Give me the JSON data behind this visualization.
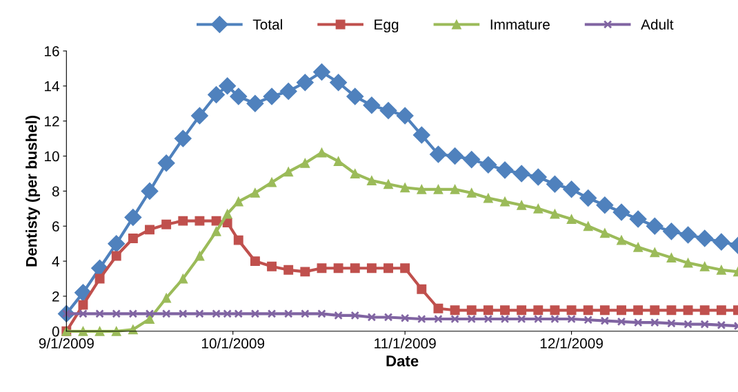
{
  "chart_data": {
    "type": "line",
    "xlabel": "Date",
    "ylabel": "Dentisty (per bushel)",
    "x": [
      "2009-09-01",
      "2009-09-04",
      "2009-09-07",
      "2009-09-10",
      "2009-09-13",
      "2009-09-16",
      "2009-09-19",
      "2009-09-22",
      "2009-09-25",
      "2009-09-28",
      "2009-09-30",
      "2009-10-02",
      "2009-10-05",
      "2009-10-08",
      "2009-10-11",
      "2009-10-14",
      "2009-10-17",
      "2009-10-20",
      "2009-10-23",
      "2009-10-26",
      "2009-10-29",
      "2009-11-01",
      "2009-11-04",
      "2009-11-07",
      "2009-11-10",
      "2009-11-13",
      "2009-11-16",
      "2009-11-19",
      "2009-11-22",
      "2009-11-25",
      "2009-11-28",
      "2009-12-01",
      "2009-12-04",
      "2009-12-07",
      "2009-12-10",
      "2009-12-13",
      "2009-12-16",
      "2009-12-19",
      "2009-12-22",
      "2009-12-25",
      "2009-12-28",
      "2009-12-31"
    ],
    "series": [
      {
        "name": "Total",
        "color": "#4f81bd",
        "marker": "diamond",
        "values": [
          1.0,
          2.2,
          3.6,
          5.0,
          6.5,
          8.0,
          9.6,
          11.0,
          12.3,
          13.5,
          14.0,
          13.4,
          13.0,
          13.4,
          13.7,
          14.2,
          14.8,
          14.2,
          13.4,
          12.9,
          12.6,
          12.3,
          11.2,
          10.1,
          10.0,
          9.8,
          9.5,
          9.2,
          9.0,
          8.8,
          8.4,
          8.1,
          7.6,
          7.2,
          6.8,
          6.4,
          6.0,
          5.7,
          5.5,
          5.3,
          5.1,
          4.9
        ]
      },
      {
        "name": "Egg",
        "color": "#c0504d",
        "marker": "square",
        "values": [
          0.0,
          1.5,
          3.0,
          4.3,
          5.3,
          5.8,
          6.1,
          6.3,
          6.3,
          6.3,
          6.2,
          5.2,
          4.0,
          3.7,
          3.5,
          3.4,
          3.6,
          3.6,
          3.6,
          3.6,
          3.6,
          3.6,
          2.4,
          1.3,
          1.2,
          1.2,
          1.2,
          1.2,
          1.2,
          1.2,
          1.2,
          1.2,
          1.2,
          1.2,
          1.2,
          1.2,
          1.2,
          1.2,
          1.2,
          1.2,
          1.2,
          1.2
        ]
      },
      {
        "name": "Immature",
        "color": "#9bbb59",
        "marker": "triangle",
        "values": [
          0.0,
          0.0,
          0.0,
          0.0,
          0.1,
          0.7,
          1.9,
          3.0,
          4.3,
          5.7,
          6.7,
          7.4,
          7.9,
          8.5,
          9.1,
          9.6,
          10.2,
          9.7,
          9.0,
          8.6,
          8.4,
          8.2,
          8.1,
          8.1,
          8.1,
          7.9,
          7.6,
          7.4,
          7.2,
          7.0,
          6.7,
          6.4,
          6.0,
          5.6,
          5.2,
          4.8,
          4.5,
          4.2,
          3.9,
          3.7,
          3.5,
          3.4
        ]
      },
      {
        "name": "Adult",
        "color": "#8064a2",
        "marker": "cross",
        "values": [
          1.0,
          1.0,
          1.0,
          1.0,
          1.0,
          1.0,
          1.0,
          1.0,
          1.0,
          1.0,
          1.0,
          1.0,
          1.0,
          1.0,
          1.0,
          1.0,
          1.0,
          0.9,
          0.9,
          0.8,
          0.8,
          0.75,
          0.7,
          0.7,
          0.7,
          0.7,
          0.7,
          0.7,
          0.7,
          0.7,
          0.7,
          0.7,
          0.65,
          0.6,
          0.55,
          0.5,
          0.5,
          0.45,
          0.4,
          0.4,
          0.35,
          0.3
        ]
      }
    ],
    "xlim": [
      "2009-09-01",
      "2009-12-31"
    ],
    "xticks": [
      {
        "value": "2009-09-01",
        "label": "9/1/2009"
      },
      {
        "value": "2009-10-01",
        "label": "10/1/2009"
      },
      {
        "value": "2009-11-01",
        "label": "11/1/2009"
      },
      {
        "value": "2009-12-01",
        "label": "12/1/2009"
      }
    ],
    "ylim": [
      0,
      16
    ],
    "yticks": [
      0,
      2,
      4,
      6,
      8,
      10,
      12,
      14,
      16
    ],
    "grid": false,
    "legend": "top",
    "line_style": "solid"
  }
}
